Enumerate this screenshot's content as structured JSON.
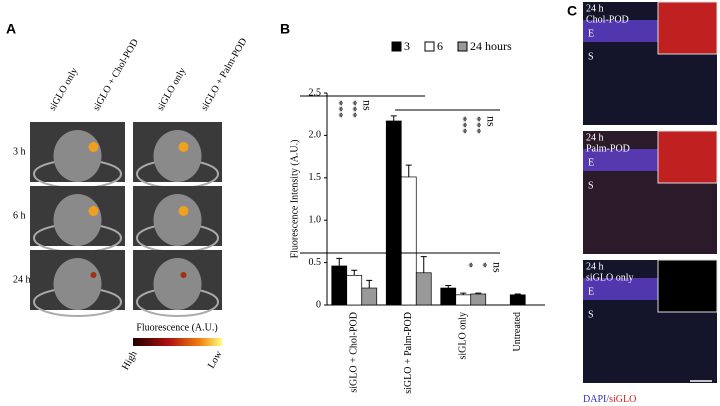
{
  "panel_a": {
    "label": "A",
    "columns": [
      "siGLO only",
      "siGLO + Chol-POD",
      "siGLO only",
      "siGLO + Palm-POD"
    ],
    "rows": [
      "3 h",
      "6 h",
      "24 h"
    ],
    "colorbar": {
      "title": "Fluorescence (A.U.)",
      "high": "High",
      "low": "Low"
    }
  },
  "chart_data": {
    "type": "bar",
    "label": "B",
    "ylabel": "Fluorescence Intensity (A.U.)",
    "categories": [
      "siGLO + Chol-POD",
      "siGLO + Palm-POD",
      "siGLO only",
      "Untreated"
    ],
    "series": [
      {
        "name": "3",
        "color": "#000000",
        "values": [
          0.46,
          2.17,
          0.2,
          0.12
        ],
        "errors": [
          0.09,
          0.06,
          0.03,
          0.01
        ]
      },
      {
        "name": "6",
        "color": "#ffffff",
        "values": [
          0.35,
          1.51,
          0.12,
          null
        ],
        "errors": [
          0.06,
          0.14,
          0.02,
          null
        ]
      },
      {
        "name": "24 hours",
        "color": "#999999",
        "values": [
          0.2,
          0.38,
          0.13,
          null
        ],
        "errors": [
          0.09,
          0.19,
          0.01,
          null
        ]
      }
    ],
    "ylim": [
      0,
      2.5
    ],
    "yticks": [
      0,
      0.5,
      {
        "value": 1,
        "label": "1.0"
      },
      1.5,
      {
        "value": 2,
        "label": "2.0"
      },
      2.5
    ],
    "annotations": [
      [
        "***",
        "***",
        "ns"
      ],
      [
        "***",
        "***",
        "ns"
      ],
      [
        "*",
        "*",
        "ns"
      ]
    ]
  },
  "panel_c": {
    "label": "C",
    "images": [
      {
        "time": "24 h",
        "name": "Chol-POD"
      },
      {
        "time": "24 h",
        "name": "Palm-POD"
      },
      {
        "time": "24 h",
        "name": "siGLO only"
      }
    ],
    "epithelium": "E",
    "stroma": "S",
    "footer": {
      "blue": "DAPI/",
      "red": "siGLO"
    }
  }
}
